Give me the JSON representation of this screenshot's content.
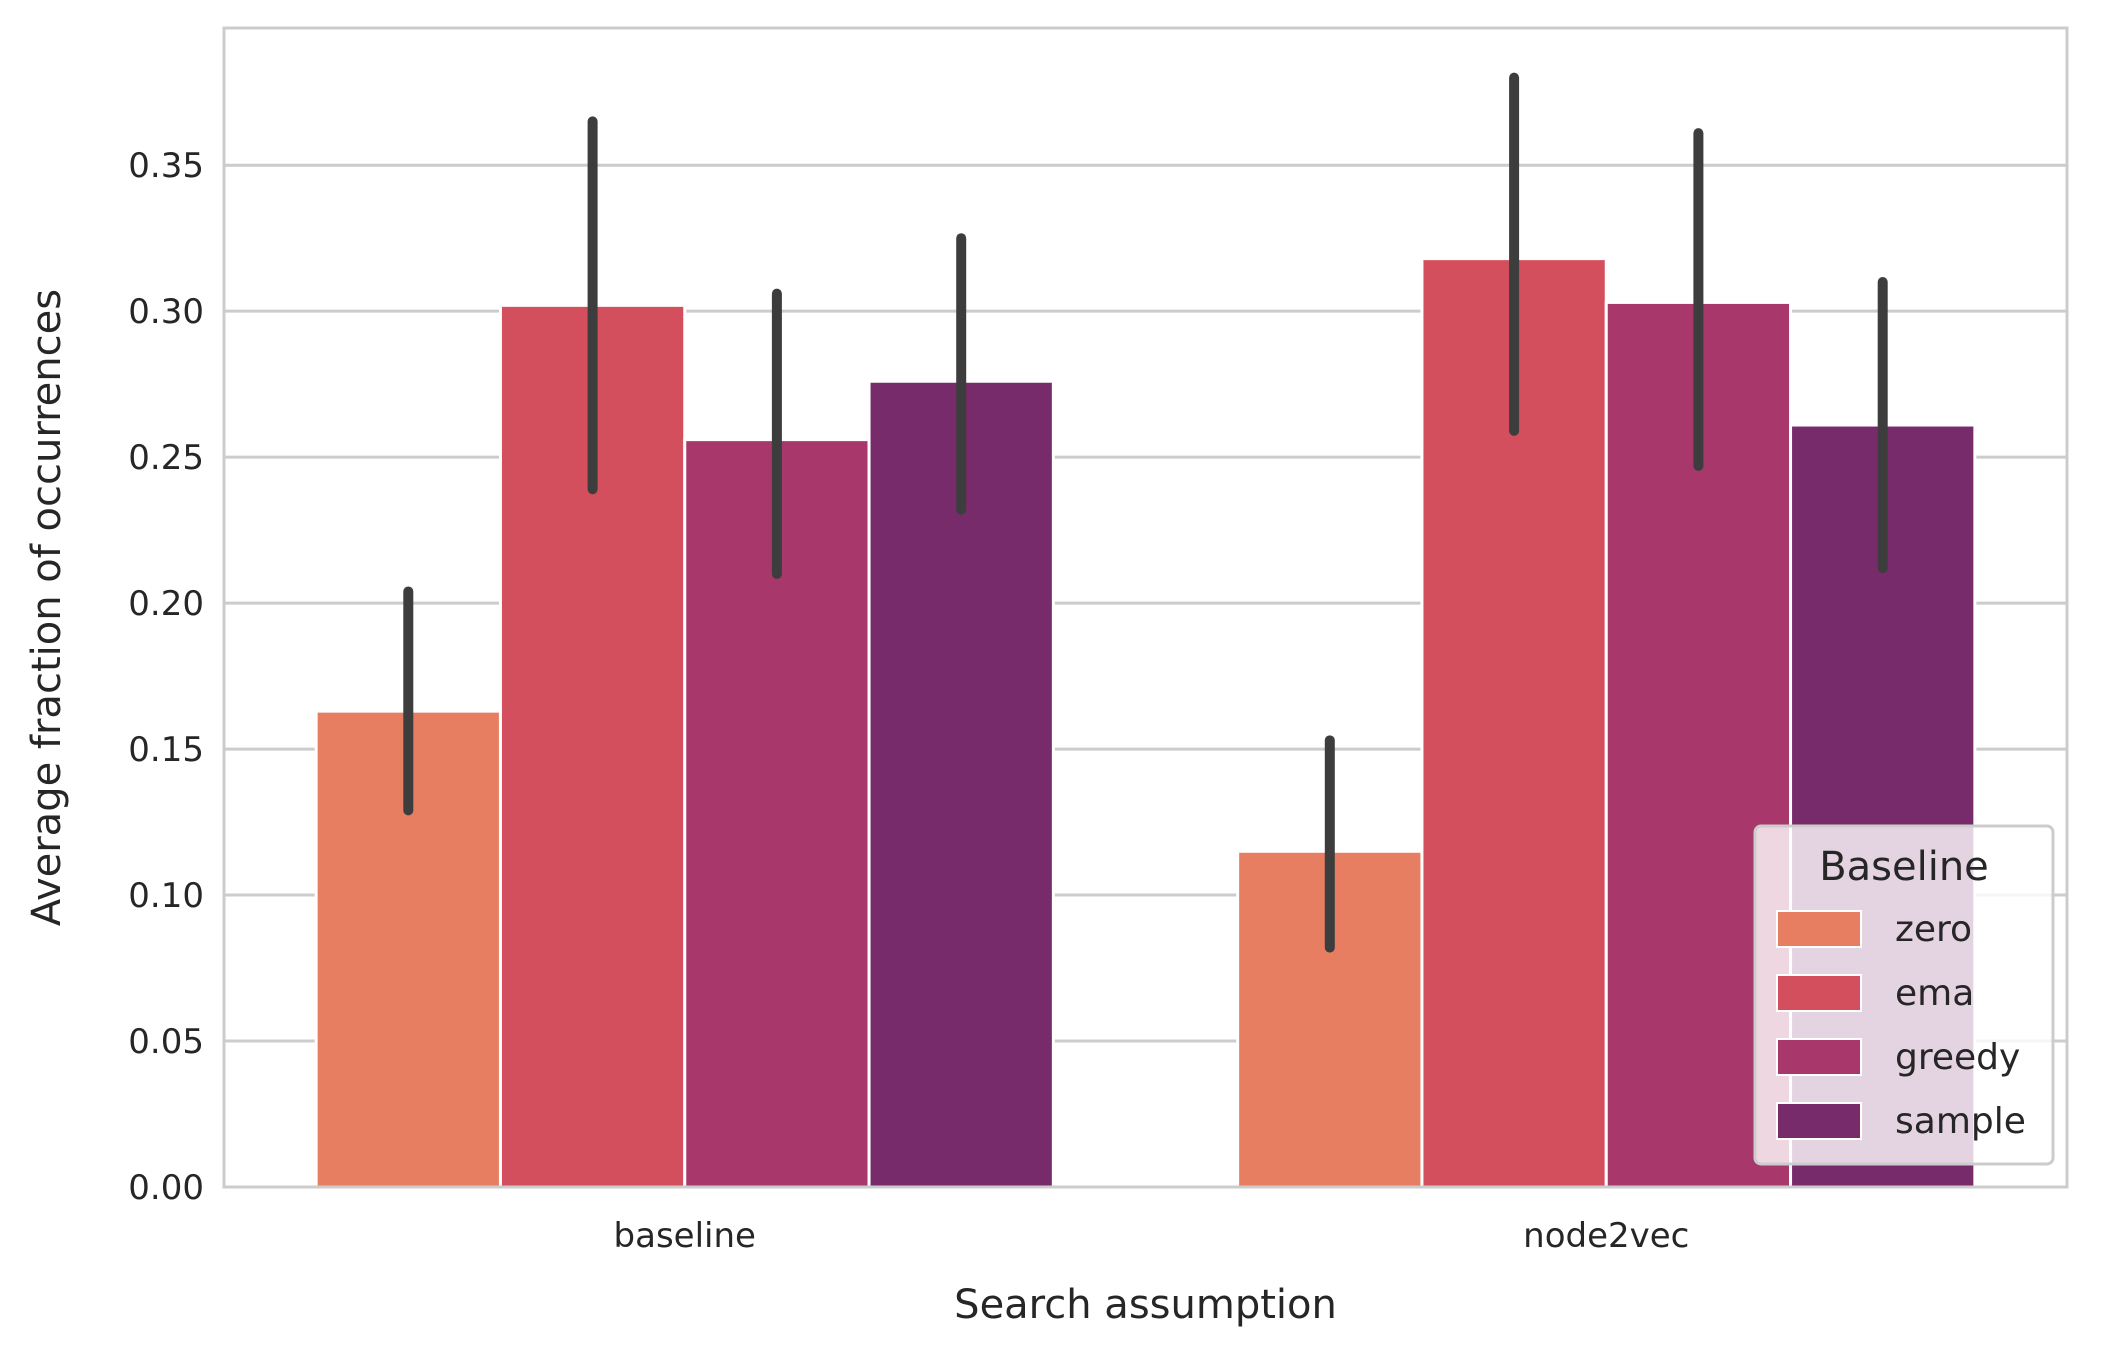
{
  "chart_data": {
    "type": "bar",
    "xlabel": "Search assumption",
    "ylabel": "Average fraction of occurrences",
    "categories": [
      "baseline",
      "node2vec"
    ],
    "ylim": [
      0,
      0.397
    ],
    "yticks": [
      "0.00",
      "0.05",
      "0.10",
      "0.15",
      "0.20",
      "0.25",
      "0.30",
      "0.35"
    ],
    "grid": true,
    "legend": {
      "title": "Baseline",
      "position": "lower right"
    },
    "series": [
      {
        "name": "zero",
        "color": "#E77E62",
        "values": [
          0.163,
          0.115
        ],
        "error_low": [
          0.129,
          0.082
        ],
        "error_high": [
          0.204,
          0.153
        ]
      },
      {
        "name": "ema",
        "color": "#D44F5E",
        "values": [
          0.302,
          0.318
        ],
        "error_low": [
          0.239,
          0.259
        ],
        "error_high": [
          0.365,
          0.38
        ]
      },
      {
        "name": "greedy",
        "color": "#A8376B",
        "values": [
          0.256,
          0.303
        ],
        "error_low": [
          0.21,
          0.247
        ],
        "error_high": [
          0.306,
          0.361
        ]
      },
      {
        "name": "sample",
        "color": "#782B6A",
        "values": [
          0.276,
          0.261
        ],
        "error_low": [
          0.232,
          0.212
        ],
        "error_high": [
          0.325,
          0.31
        ]
      }
    ],
    "errorbar_color": "#3d3d3d",
    "grid_color": "#cccccc",
    "spine_color": "#cccccc"
  }
}
